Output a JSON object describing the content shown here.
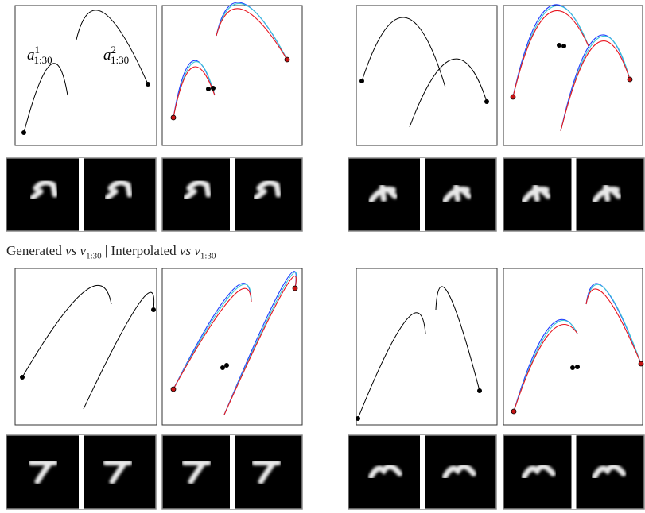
{
  "labels": [
    {
      "symbol": "a",
      "superscript": "1",
      "subscript": "1:30"
    },
    {
      "symbol": "a",
      "superscript": "2",
      "subscript": "1:30"
    }
  ],
  "caption": {
    "left": {
      "word": "Generated",
      "vs": "vs",
      "variable": "v",
      "subscript": "1:30"
    },
    "separator": "|",
    "right": {
      "word": "Interpolated",
      "vs": "vs",
      "variable": "v",
      "subscript": "1:30"
    }
  }
}
